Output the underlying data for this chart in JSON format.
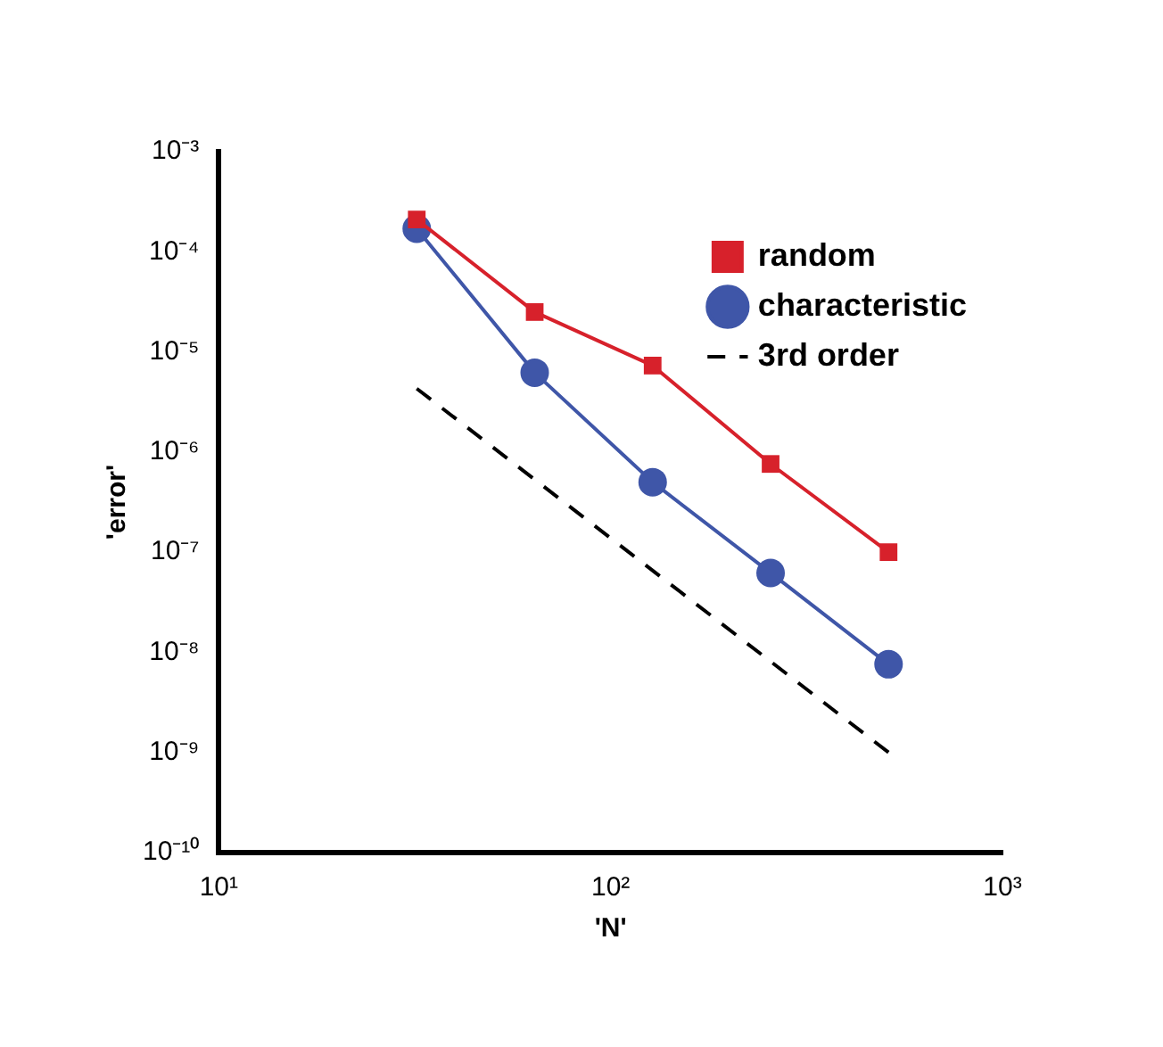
{
  "chart_data": {
    "type": "line",
    "xlabel": "'N'",
    "ylabel": "'error'",
    "log": "xy",
    "xlim": [
      10,
      1000
    ],
    "xticks": [
      {
        "value": 10,
        "label": "10¹"
      },
      {
        "value": 100,
        "label": "10²"
      },
      {
        "value": 1000,
        "label": "10³"
      }
    ],
    "ylim": [
      1e-10,
      0.001
    ],
    "yticks": [
      {
        "value": 1e-10,
        "label": "10⁻¹⁰"
      },
      {
        "value": 1e-09,
        "label": "10⁻⁹"
      },
      {
        "value": 1e-08,
        "label": "10⁻⁸"
      },
      {
        "value": 1e-07,
        "label": "10⁻⁷"
      },
      {
        "value": 1e-06,
        "label": "10⁻⁶"
      },
      {
        "value": 1e-05,
        "label": "10⁻⁵"
      },
      {
        "value": 0.0001,
        "label": "10⁻⁴"
      },
      {
        "value": 0.001,
        "label": "10⁻³"
      }
    ],
    "grid": false,
    "legend": "top right",
    "series": [
      {
        "name": "random",
        "color": "#d7212b",
        "marker": "square",
        "line_style": "solid",
        "x": [
          32,
          64,
          128,
          256,
          512
        ],
        "values": [
          0.00021,
          2.5e-05,
          7.3e-06,
          7.6e-07,
          1e-07
        ]
      },
      {
        "name": "characteristic",
        "color": "#3f56a8",
        "marker": "circle",
        "line_style": "solid",
        "x": [
          32,
          64,
          128,
          256,
          512
        ],
        "values": [
          0.00017,
          6.2e-06,
          5e-07,
          6.2e-08,
          7.6e-09
        ]
      },
      {
        "name": "3rd order",
        "color": "#000000",
        "marker": "none",
        "line_style": "dashed",
        "x": [
          32,
          512
        ],
        "values": [
          4.3e-06,
          1e-09
        ]
      }
    ]
  }
}
